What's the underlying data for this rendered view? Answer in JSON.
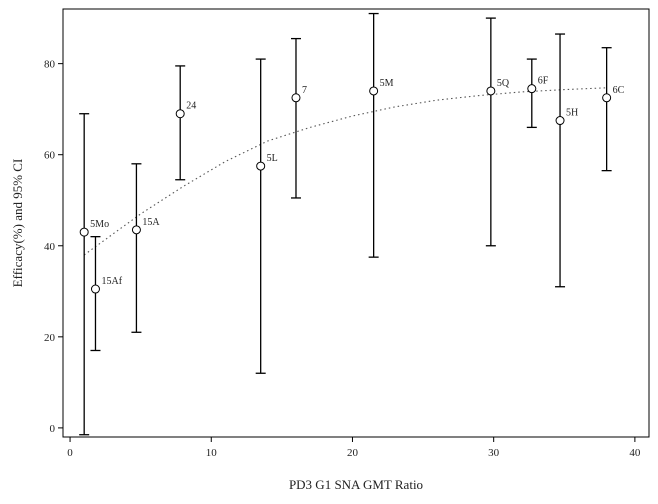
{
  "chart_data": {
    "type": "scatter",
    "xlabel": "PD3 G1 SNA GMT Ratio",
    "ylabel": "Efficacy(%) and 95% CI",
    "xlim": [
      -0.5,
      41
    ],
    "ylim": [
      -2,
      92
    ],
    "xticks": [
      0,
      10,
      20,
      30,
      40
    ],
    "yticks": [
      0,
      20,
      40,
      60,
      80
    ],
    "grid": false,
    "legend": "none",
    "points": [
      {
        "label": "5Mo",
        "x": 1.0,
        "y": 43.0,
        "lo": -1.5,
        "hi": 69.0
      },
      {
        "label": "15Af",
        "x": 1.8,
        "y": 30.5,
        "lo": 17.0,
        "hi": 42.0
      },
      {
        "label": "15A",
        "x": 4.7,
        "y": 43.5,
        "lo": 21.0,
        "hi": 58.0
      },
      {
        "label": "24",
        "x": 7.8,
        "y": 69.0,
        "lo": 54.5,
        "hi": 79.5
      },
      {
        "label": "5L",
        "x": 13.5,
        "y": 57.5,
        "lo": 12.0,
        "hi": 81.0
      },
      {
        "label": "7",
        "x": 16.0,
        "y": 72.5,
        "lo": 50.5,
        "hi": 85.5
      },
      {
        "label": "5M",
        "x": 21.5,
        "y": 74.0,
        "lo": 37.5,
        "hi": 91.0
      },
      {
        "label": "5Q",
        "x": 29.8,
        "y": 74.0,
        "lo": 40.0,
        "hi": 90.0
      },
      {
        "label": "6F",
        "x": 32.7,
        "y": 74.5,
        "lo": 66.0,
        "hi": 81.0
      },
      {
        "label": "5H",
        "x": 34.7,
        "y": 67.5,
        "lo": 31.0,
        "hi": 86.5
      },
      {
        "label": "6C",
        "x": 38.0,
        "y": 72.5,
        "lo": 56.5,
        "hi": 83.5
      }
    ],
    "trend": {
      "style": "dotted",
      "x": [
        1,
        3,
        5,
        8,
        11,
        14,
        17,
        20,
        23,
        26,
        29,
        32,
        35,
        38
      ],
      "y": [
        38.0,
        42.5,
        47.0,
        53.0,
        58.5,
        63.0,
        66.0,
        68.5,
        70.5,
        72.0,
        73.0,
        73.8,
        74.3,
        74.7
      ]
    }
  }
}
